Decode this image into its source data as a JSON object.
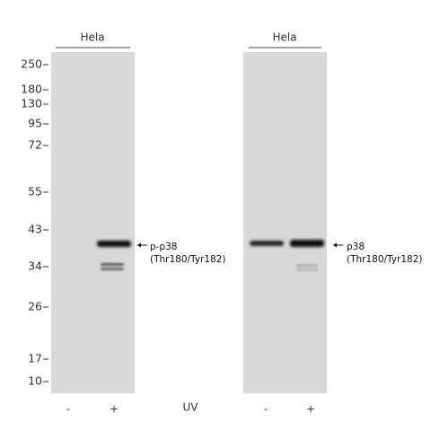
{
  "panels": [
    {
      "sample": "Hela",
      "antibody": "p-p38",
      "epitope": "(Thr180/Tyr182)",
      "lanes": [
        "-",
        "+"
      ]
    },
    {
      "sample": "Hela",
      "antibody": "p38",
      "epitope": "(Thr180/Tyr182)",
      "lanes": [
        "-",
        "+"
      ]
    }
  ],
  "treatment": "UV",
  "markers": [
    "250",
    "180",
    "130",
    "95",
    "72",
    "55",
    "43",
    "34",
    "26",
    "17",
    "10"
  ]
}
